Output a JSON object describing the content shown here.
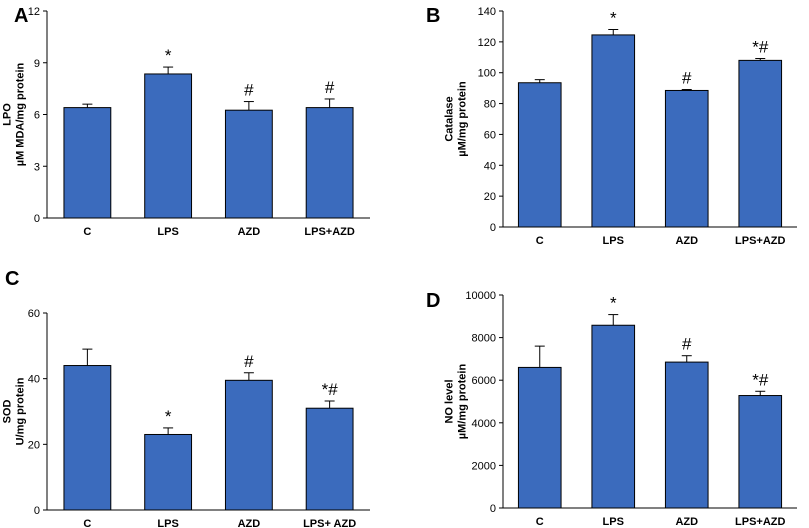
{
  "chart_data": [
    {
      "panel": "A",
      "type": "bar",
      "categories": [
        "C",
        "LPS",
        "AZD",
        "LPS+AZD"
      ],
      "values": [
        6.4,
        8.35,
        6.25,
        6.4
      ],
      "errors": [
        0.2,
        0.4,
        0.5,
        0.5
      ],
      "annotations": [
        "",
        "*",
        "#",
        "#"
      ],
      "ylabel_lines": [
        "LPO",
        "µM MDA/mg protein"
      ],
      "ylim": [
        0,
        12
      ],
      "yticks": [
        0,
        3,
        6,
        9,
        12
      ],
      "color": "#3b6bbd"
    },
    {
      "panel": "B",
      "type": "bar",
      "categories": [
        "C",
        "LPS",
        "AZD",
        "LPS+AZD"
      ],
      "values": [
        93.5,
        124.5,
        88.5,
        108
      ],
      "errors": [
        2,
        3.5,
        0.6,
        1.2
      ],
      "annotations": [
        "",
        "*",
        "#",
        "*#"
      ],
      "ylabel_lines": [
        "Catalase",
        "µM/mg protein"
      ],
      "ylim": [
        0,
        140
      ],
      "yticks": [
        0,
        20,
        40,
        60,
        80,
        100,
        120,
        140
      ],
      "color": "#3b6bbd"
    },
    {
      "panel": "C",
      "type": "bar",
      "categories": [
        "C",
        "LPS",
        "AZD",
        "LPS+ AZD"
      ],
      "values": [
        44,
        23,
        39.5,
        31
      ],
      "errors": [
        5,
        2,
        2.3,
        2.2
      ],
      "annotations": [
        "",
        "*",
        "#",
        "*#"
      ],
      "ylabel_lines": [
        "SOD",
        "U/mg protein"
      ],
      "ylim": [
        0,
        60
      ],
      "yticks": [
        0,
        20,
        40,
        60
      ],
      "color": "#3b6bbd"
    },
    {
      "panel": "D",
      "type": "bar",
      "categories": [
        "C",
        "LPS",
        "AZD",
        "LPS+AZD"
      ],
      "values": [
        6600,
        8580,
        6850,
        5280
      ],
      "errors": [
        1000,
        500,
        300,
        200
      ],
      "annotations": [
        "",
        "*",
        "#",
        "*#"
      ],
      "ylabel_lines": [
        "NO level",
        "µM/mg protein"
      ],
      "ylim": [
        0,
        10000
      ],
      "yticks": [
        0,
        2000,
        4000,
        6000,
        8000,
        10000
      ],
      "color": "#3b6bbd"
    }
  ]
}
